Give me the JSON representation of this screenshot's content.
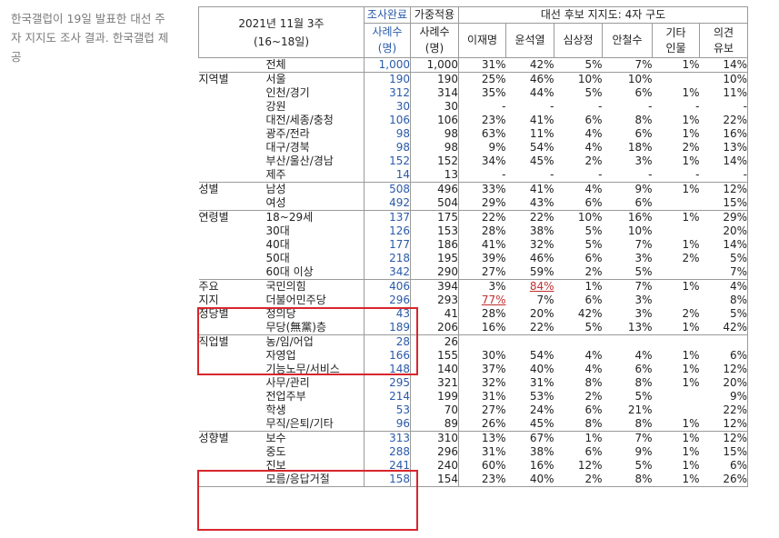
{
  "caption": "한국갤럽이 19일 발표한 대선 주자 지지도 조사 결과. 한국갤럽 제공",
  "table": {
    "header": {
      "period_line1": "2021년 11월 3주",
      "period_line2": "(16~18일)",
      "done_label": "조사완료",
      "done_sub1": "사례수",
      "done_sub2": "(명)",
      "weighted_label": "가중적용",
      "weighted_sub1": "사례수",
      "weighted_sub2": "(명)",
      "support_title": "대선 후보 지지도: 4자 구도",
      "candidates": [
        "이재명",
        "윤석열",
        "심상정",
        "안철수"
      ],
      "other_line1": "기타",
      "other_line2": "인물",
      "reserve_line1": "의견",
      "reserve_line2": "유보"
    },
    "rows": [
      {
        "group": "",
        "sub": "전체",
        "n": "1,000",
        "w": "1,000",
        "v": [
          "31%",
          "42%",
          "5%",
          "7%",
          "1%",
          "14%"
        ]
      },
      {
        "group": "지역별",
        "sub": "서울",
        "n": "190",
        "w": "190",
        "v": [
          "25%",
          "46%",
          "10%",
          "10%",
          "",
          "10%"
        ]
      },
      {
        "group": "",
        "sub": "인천/경기",
        "n": "312",
        "w": "314",
        "v": [
          "35%",
          "44%",
          "5%",
          "6%",
          "1%",
          "11%"
        ]
      },
      {
        "group": "",
        "sub": "강원",
        "n": "30",
        "w": "30",
        "v": [
          "-",
          "-",
          "-",
          "-",
          "-",
          "-"
        ]
      },
      {
        "group": "",
        "sub": "대전/세종/충청",
        "n": "106",
        "w": "106",
        "v": [
          "23%",
          "41%",
          "6%",
          "8%",
          "1%",
          "22%"
        ]
      },
      {
        "group": "",
        "sub": "광주/전라",
        "n": "98",
        "w": "98",
        "v": [
          "63%",
          "11%",
          "4%",
          "6%",
          "1%",
          "16%"
        ]
      },
      {
        "group": "",
        "sub": "대구/경북",
        "n": "98",
        "w": "98",
        "v": [
          "9%",
          "54%",
          "4%",
          "18%",
          "2%",
          "13%"
        ]
      },
      {
        "group": "",
        "sub": "부산/울산/경남",
        "n": "152",
        "w": "152",
        "v": [
          "34%",
          "45%",
          "2%",
          "3%",
          "1%",
          "14%"
        ]
      },
      {
        "group": "",
        "sub": "제주",
        "n": "14",
        "w": "13",
        "v": [
          "-",
          "-",
          "-",
          "-",
          "-",
          "-"
        ]
      },
      {
        "group": "성별",
        "sub": "남성",
        "n": "508",
        "w": "496",
        "v": [
          "33%",
          "41%",
          "4%",
          "9%",
          "1%",
          "12%"
        ]
      },
      {
        "group": "",
        "sub": "여성",
        "n": "492",
        "w": "504",
        "v": [
          "29%",
          "43%",
          "6%",
          "6%",
          "",
          "15%"
        ]
      },
      {
        "group": "연령별",
        "sub": "18~29세",
        "n": "137",
        "w": "175",
        "v": [
          "22%",
          "22%",
          "10%",
          "16%",
          "1%",
          "29%"
        ]
      },
      {
        "group": "",
        "sub": "30대",
        "n": "126",
        "w": "153",
        "v": [
          "28%",
          "38%",
          "5%",
          "10%",
          "",
          "20%"
        ]
      },
      {
        "group": "",
        "sub": "40대",
        "n": "177",
        "w": "186",
        "v": [
          "41%",
          "32%",
          "5%",
          "7%",
          "1%",
          "14%"
        ]
      },
      {
        "group": "",
        "sub": "50대",
        "n": "218",
        "w": "195",
        "v": [
          "39%",
          "46%",
          "6%",
          "3%",
          "2%",
          "5%"
        ]
      },
      {
        "group": "",
        "sub": "60대 이상",
        "n": "342",
        "w": "290",
        "v": [
          "27%",
          "59%",
          "2%",
          "5%",
          "",
          "7%"
        ]
      },
      {
        "group": "주요",
        "sub": "국민의힘",
        "n": "406",
        "w": "394",
        "v": [
          "3%",
          "84%",
          "1%",
          "7%",
          "1%",
          "4%"
        ]
      },
      {
        "group": "지지",
        "sub": "더불어민주당",
        "n": "296",
        "w": "293",
        "v": [
          "77%",
          "7%",
          "6%",
          "3%",
          "",
          "8%"
        ]
      },
      {
        "group": "정당별",
        "sub": "정의당",
        "n": "43",
        "w": "41",
        "v": [
          "28%",
          "20%",
          "42%",
          "3%",
          "2%",
          "5%"
        ]
      },
      {
        "group": "",
        "sub": "무당(無黨)층",
        "n": "189",
        "w": "206",
        "v": [
          "16%",
          "22%",
          "5%",
          "13%",
          "1%",
          "42%"
        ]
      },
      {
        "group": "직업별",
        "sub": "농/임/어업",
        "n": "28",
        "w": "26",
        "v": [
          "",
          "",
          "",
          "",
          "",
          ""
        ]
      },
      {
        "group": "",
        "sub": "자영업",
        "n": "166",
        "w": "155",
        "v": [
          "30%",
          "54%",
          "4%",
          "4%",
          "1%",
          "6%"
        ]
      },
      {
        "group": "",
        "sub": "기능노무/서비스",
        "n": "148",
        "w": "140",
        "v": [
          "37%",
          "40%",
          "4%",
          "6%",
          "1%",
          "12%"
        ]
      },
      {
        "group": "",
        "sub": "사무/관리",
        "n": "295",
        "w": "321",
        "v": [
          "32%",
          "31%",
          "8%",
          "8%",
          "1%",
          "20%"
        ]
      },
      {
        "group": "",
        "sub": "전업주부",
        "n": "214",
        "w": "199",
        "v": [
          "31%",
          "53%",
          "2%",
          "5%",
          "",
          "9%"
        ]
      },
      {
        "group": "",
        "sub": "학생",
        "n": "53",
        "w": "70",
        "v": [
          "27%",
          "24%",
          "6%",
          "21%",
          "",
          "22%"
        ]
      },
      {
        "group": "",
        "sub": "무직/은퇴/기타",
        "n": "96",
        "w": "89",
        "v": [
          "26%",
          "45%",
          "8%",
          "8%",
          "1%",
          "12%"
        ]
      },
      {
        "group": "성향별",
        "sub": "보수",
        "n": "313",
        "w": "310",
        "v": [
          "13%",
          "67%",
          "1%",
          "7%",
          "1%",
          "12%"
        ]
      },
      {
        "group": "",
        "sub": "중도",
        "n": "288",
        "w": "296",
        "v": [
          "31%",
          "38%",
          "6%",
          "9%",
          "1%",
          "15%"
        ]
      },
      {
        "group": "",
        "sub": "진보",
        "n": "241",
        "w": "240",
        "v": [
          "60%",
          "16%",
          "12%",
          "5%",
          "1%",
          "6%"
        ]
      },
      {
        "group": "",
        "sub": "모름/응답거절",
        "n": "158",
        "w": "154",
        "v": [
          "23%",
          "40%",
          "2%",
          "8%",
          "1%",
          "26%"
        ]
      }
    ],
    "highlighted_cells": [
      "84%",
      "77%"
    ]
  },
  "colors": {
    "box_border": "#d8262c",
    "count_text": "#2a5aa8",
    "highlight_text": "#c03030",
    "caption_text": "#7a7a7a"
  }
}
